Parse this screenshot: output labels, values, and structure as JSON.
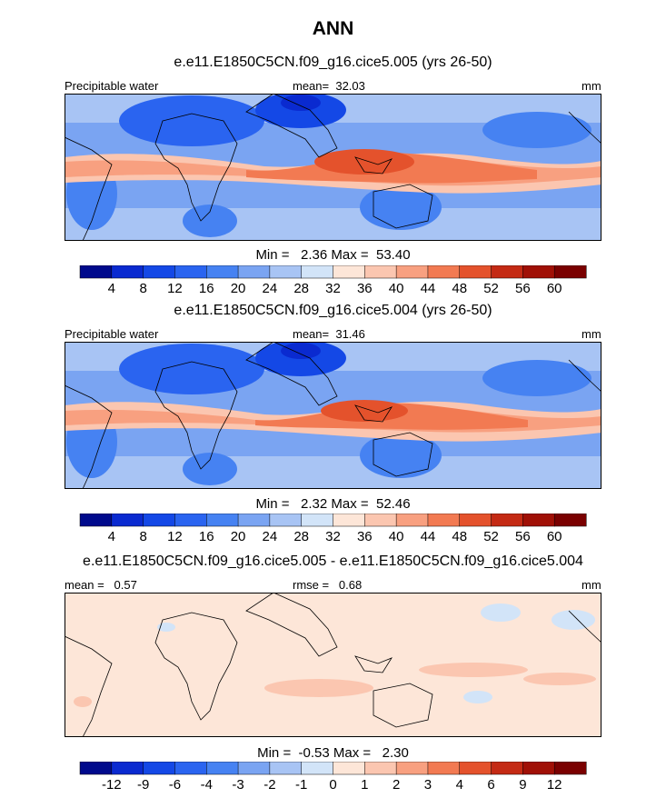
{
  "figure": {
    "title": "ANN"
  },
  "chart_data": [
    {
      "type": "heatmap",
      "panel": "top",
      "title": "e.e11.E1850C5CN.f09_g16.cice5.005 (yrs 26-50)",
      "left_label": "Precipitable water",
      "center_label": "mean=  32.03",
      "right_label": "mm",
      "stats": "Min =   2.36 Max =  53.40",
      "mean": 32.03,
      "min": 2.36,
      "max": 53.4,
      "units": "mm",
      "colorbar_ticks": [
        "4",
        "8",
        "12",
        "16",
        "20",
        "24",
        "28",
        "32",
        "36",
        "40",
        "44",
        "48",
        "52",
        "56",
        "60"
      ],
      "colorbar_colors": [
        "#000a8c",
        "#0a2ad0",
        "#1448e6",
        "#2a64f0",
        "#4682f2",
        "#7aa4f2",
        "#a8c4f4",
        "#d2e4f8",
        "#fde6d8",
        "#fbc6b0",
        "#f8a080",
        "#f27a52",
        "#e4522c",
        "#c42a14",
        "#a01006",
        "#7a0000"
      ]
    },
    {
      "type": "heatmap",
      "panel": "middle",
      "title": "e.e11.E1850C5CN.f09_g16.cice5.004 (yrs 26-50)",
      "left_label": "Precipitable water",
      "center_label": "mean=  31.46",
      "right_label": "mm",
      "stats": "Min =   2.32 Max =  52.46",
      "mean": 31.46,
      "min": 2.32,
      "max": 52.46,
      "units": "mm",
      "colorbar_ticks": [
        "4",
        "8",
        "12",
        "16",
        "20",
        "24",
        "28",
        "32",
        "36",
        "40",
        "44",
        "48",
        "52",
        "56",
        "60"
      ],
      "colorbar_colors": [
        "#000a8c",
        "#0a2ad0",
        "#1448e6",
        "#2a64f0",
        "#4682f2",
        "#7aa4f2",
        "#a8c4f4",
        "#d2e4f8",
        "#fde6d8",
        "#fbc6b0",
        "#f8a080",
        "#f27a52",
        "#e4522c",
        "#c42a14",
        "#a01006",
        "#7a0000"
      ]
    },
    {
      "type": "heatmap",
      "panel": "bottom",
      "title": "e.e11.E1850C5CN.f09_g16.cice5.005 - e.e11.E1850C5CN.f09_g16.cice5.004",
      "left_label": "mean =   0.57",
      "center_label": "rmse =   0.68",
      "right_label": "mm",
      "stats": "Min =  -0.53 Max =   2.30",
      "mean": 0.57,
      "rmse": 0.68,
      "min": -0.53,
      "max": 2.3,
      "units": "mm",
      "colorbar_ticks": [
        "-12",
        "-9",
        "-6",
        "-4",
        "-3",
        "-2",
        "-1",
        "0",
        "1",
        "2",
        "3",
        "4",
        "6",
        "9",
        "12"
      ],
      "colorbar_colors": [
        "#000a8c",
        "#0a2ad0",
        "#1448e6",
        "#2a64f0",
        "#4682f2",
        "#7aa4f2",
        "#a8c4f4",
        "#d2e4f8",
        "#fde6d8",
        "#fbc6b0",
        "#f8a080",
        "#f27a52",
        "#e4522c",
        "#c42a14",
        "#a01006",
        "#7a0000"
      ]
    }
  ]
}
